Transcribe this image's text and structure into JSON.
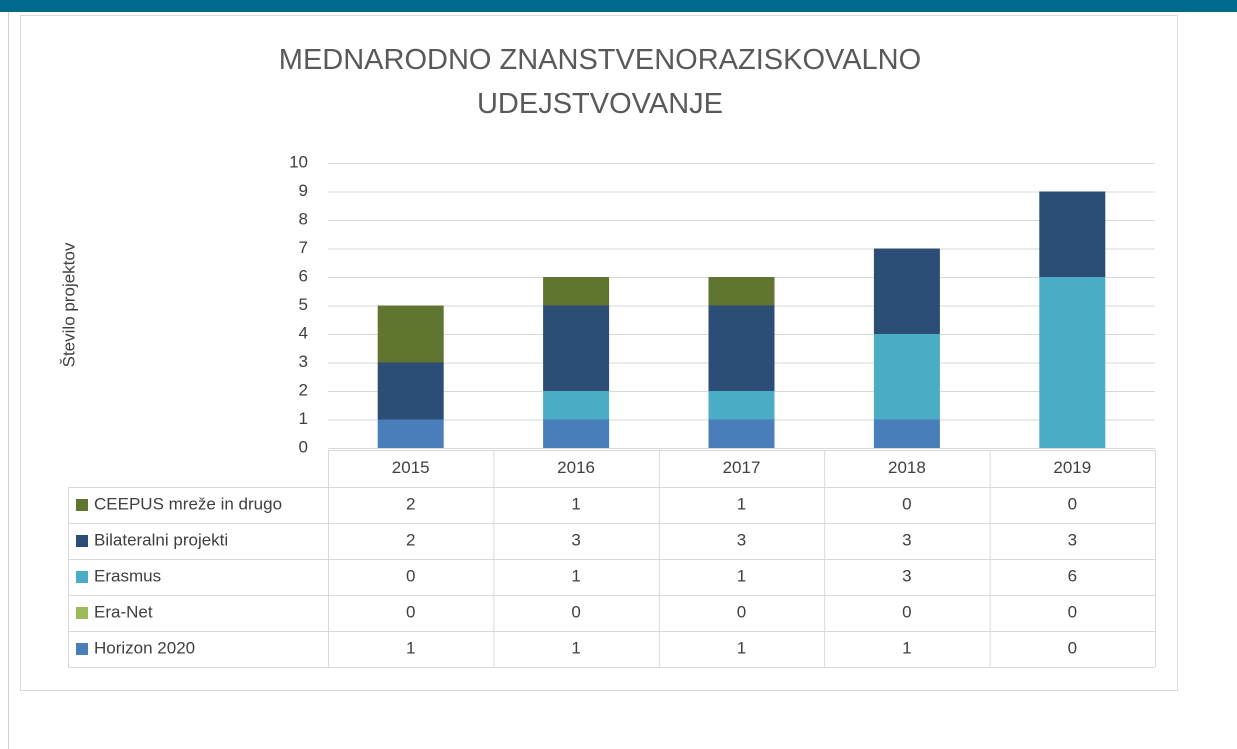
{
  "chart_data": {
    "type": "stacked_bar",
    "title": "MEDNARODNO ZNANSTVENORAZISKOVALNO UDEJSTVOVANJE",
    "y_label": "Število projektov",
    "categories": [
      "2015",
      "2016",
      "2017",
      "2018",
      "2019"
    ],
    "series": [
      {
        "name": "Horizon 2020",
        "color": "#4a7ebb",
        "values": [
          1,
          1,
          1,
          1,
          0
        ]
      },
      {
        "name": "Era-Net",
        "color": "#9bbb59",
        "values": [
          0,
          0,
          0,
          0,
          0
        ]
      },
      {
        "name": "Erasmus",
        "color": "#4bacc6",
        "values": [
          0,
          1,
          1,
          3,
          6
        ]
      },
      {
        "name": "Bilateralni projekti",
        "color": "#2c4d75",
        "values": [
          2,
          3,
          3,
          3,
          3
        ]
      },
      {
        "name": "CEEPUS mreže in drugo",
        "color": "#5f7530",
        "values": [
          2,
          1,
          1,
          0,
          0
        ]
      }
    ],
    "ylim": [
      0,
      10
    ],
    "yticks": [
      0,
      1,
      2,
      3,
      4,
      5,
      6,
      7,
      8,
      9,
      10
    ],
    "grid": true,
    "data_table": true
  }
}
